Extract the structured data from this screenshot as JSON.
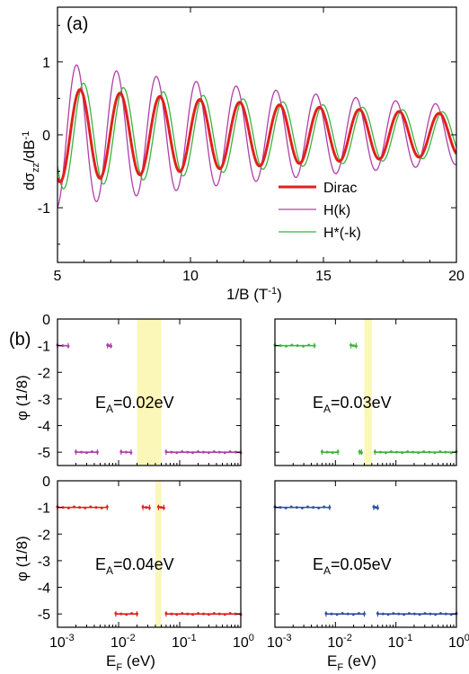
{
  "chart_data": [
    {
      "type": "line",
      "panel": "(a)",
      "xlabel": "1/B (T",
      "xlabel_sup": "-1",
      "xlabel_end": ")",
      "ylabel_main": "dσ",
      "ylabel_sub": "zz",
      "ylabel_end": "/dB",
      "ylabel_sup": "-1",
      "xlim": [
        5,
        20
      ],
      "ylim": [
        -1.75,
        1.75
      ],
      "xticks": [
        "5",
        "10",
        "15",
        "20"
      ],
      "xtick_values": [
        5,
        10,
        15,
        20
      ],
      "yticks": [
        "-1",
        "0",
        "1"
      ],
      "ytick_values": [
        -1,
        0,
        1
      ],
      "legend_position": "bottom-right",
      "series": [
        {
          "name": "Dirac",
          "color": "#e0201e",
          "amp0": 0.65,
          "decay": 0.055,
          "freq": 0.6667,
          "phase": 0.0
        },
        {
          "name": "H(k)",
          "color": "#b040a8",
          "amp0": 1.0,
          "decay": 0.06,
          "freq": 0.6667,
          "phase": 0.55
        },
        {
          "name": "H*(-k)",
          "color": "#3cb43c",
          "amp0": 0.75,
          "decay": 0.06,
          "freq": 0.6667,
          "phase": -0.55
        }
      ]
    },
    {
      "type": "scatter",
      "panel": "(b)",
      "ylabel_main": "φ (1/8)",
      "xlabel_main": "E",
      "xlabel_sub": "F",
      "xlabel_end": " (eV)",
      "xscale": "log",
      "xlim": [
        0.001,
        1
      ],
      "ylim": [
        -5.5,
        0
      ],
      "xticks": [
        {
          "base": "10",
          "exp": "-3"
        },
        {
          "base": "10",
          "exp": "-2"
        },
        {
          "base": "10",
          "exp": "-1"
        },
        {
          "base": "10",
          "exp": "0"
        }
      ],
      "yticks": [
        "0",
        "-1",
        "-2",
        "-3",
        "-4",
        "-5"
      ],
      "subpanels": [
        {
          "label_main": "E",
          "label_sub": "A",
          "label_end": "=0.02eV",
          "color": "#b040a8",
          "band": [
            0.02,
            0.05
          ],
          "segments": [
            {
              "y": -1,
              "x": [
                0.001,
                0.0015
              ]
            },
            {
              "y": -1,
              "x": [
                0.0066,
                0.0075
              ]
            },
            {
              "y": -5,
              "x": [
                0.002,
                0.0045
              ]
            },
            {
              "y": -5,
              "x": [
                0.011,
                0.016
              ]
            },
            {
              "y": -5,
              "x": [
                0.06,
                1.0
              ]
            }
          ]
        },
        {
          "label_main": "E",
          "label_sub": "A",
          "label_end": "=0.03eV",
          "color": "#3cb43c",
          "band": [
            0.03,
            0.04
          ],
          "segments": [
            {
              "y": -1,
              "x": [
                0.001,
                0.0045
              ]
            },
            {
              "y": -1,
              "x": [
                0.018,
                0.022
              ]
            },
            {
              "y": -5,
              "x": [
                0.006,
                0.011
              ]
            },
            {
              "y": -5,
              "x": [
                0.025,
                0.027
              ]
            },
            {
              "y": -5,
              "x": [
                0.045,
                1.0
              ]
            }
          ]
        },
        {
          "label_main": "E",
          "label_sub": "A",
          "label_end": "=0.04eV",
          "color": "#e0201e",
          "band": [
            0.04,
            0.05
          ],
          "segments": [
            {
              "y": -1,
              "x": [
                0.001,
                0.0065
              ]
            },
            {
              "y": -1,
              "x": [
                0.025,
                0.032
              ]
            },
            {
              "y": -1,
              "x": [
                0.045,
                0.055
              ]
            },
            {
              "y": -5,
              "x": [
                0.009,
                0.02
              ]
            },
            {
              "y": -5,
              "x": [
                0.06,
                1.0
              ]
            }
          ]
        },
        {
          "label_main": "E",
          "label_sub": "A",
          "label_end": "=0.05eV",
          "color": "#3050a0",
          "band": null,
          "segments": [
            {
              "y": -1,
              "x": [
                0.001,
                0.008
              ]
            },
            {
              "y": -1,
              "x": [
                0.043,
                0.05
              ]
            },
            {
              "y": -5,
              "x": [
                0.007,
                0.03
              ]
            },
            {
              "y": -5,
              "x": [
                0.05,
                1.0
              ]
            }
          ]
        }
      ]
    }
  ]
}
